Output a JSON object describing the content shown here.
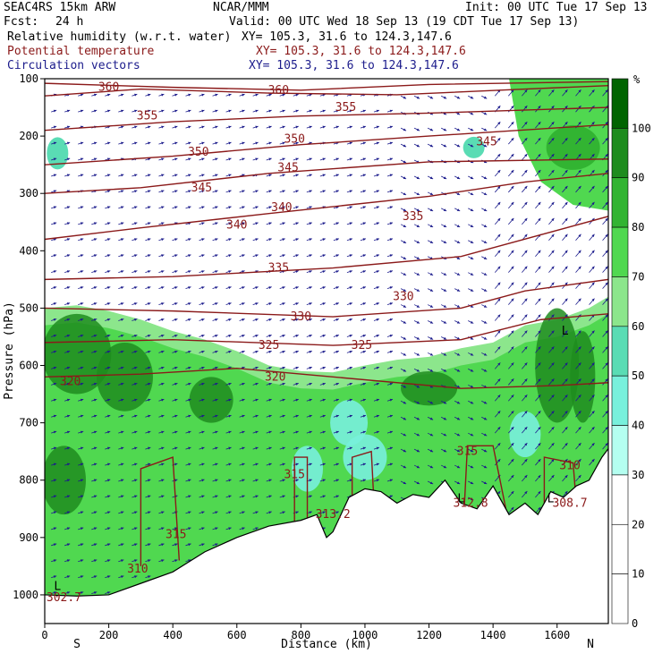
{
  "header": {
    "model": "SEAC4RS 15km ARW",
    "center": "NCAR/MMM",
    "init": "Init: 00 UTC Tue 17 Sep 13",
    "fcst_label": "Fcst:",
    "fcst_value": "24 h",
    "valid": "Valid: 00 UTC Wed 18 Sep 13 (19 CDT Tue 17 Sep 13)",
    "fields": [
      {
        "name": "Relative humidity (w.r.t. water)",
        "xy": "XY= 105.3, 31.6 to 124.3,147.6",
        "color": "#000000"
      },
      {
        "name": "Potential temperature",
        "xy": "XY= 105.3, 31.6 to 124.3,147.6",
        "color": "#8b1a1a"
      },
      {
        "name": "Circulation vectors",
        "xy": "XY= 105.3, 31.6 to 124.3,147.6",
        "color": "#1c1c8c"
      }
    ]
  },
  "chart_data": {
    "type": "heatmap",
    "description_fields": [
      "relative humidity (shaded, %)",
      "potential temperature (contours, K)",
      "circulation vectors"
    ],
    "xlabel": "Distance (km)",
    "ylabel": "Pressure (hPa)",
    "xlim": [
      0,
      1760
    ],
    "ylim": [
      1050,
      100
    ],
    "x_ticks": [
      "0",
      "200",
      "400",
      "600",
      "800",
      "1000",
      "1200",
      "1400",
      "1600"
    ],
    "y_ticks": [
      "100",
      "200",
      "300",
      "400",
      "500",
      "600",
      "700",
      "800",
      "900",
      "1000"
    ],
    "left_end_label": "S",
    "right_end_label": "N",
    "colorbar": {
      "unit": "%",
      "labels": [
        "100",
        "90",
        "80",
        "70",
        "60",
        "50",
        "40",
        "30",
        "20",
        "10",
        "0"
      ],
      "colors": [
        "#006400",
        "#1e8c1e",
        "#32b432",
        "#50d850",
        "#8ce68c",
        "#5adcb4",
        "#78f0dc",
        "#b4fff0",
        "#ffffff",
        "#ffffff",
        "#ffffff"
      ]
    },
    "theta_contour_labels": [
      {
        "text": "360",
        "x": 200,
        "p": 115
      },
      {
        "text": "360",
        "x": 730,
        "p": 120
      },
      {
        "text": "355",
        "x": 320,
        "p": 165
      },
      {
        "text": "355",
        "x": 940,
        "p": 150
      },
      {
        "text": "350",
        "x": 480,
        "p": 228
      },
      {
        "text": "350",
        "x": 780,
        "p": 205
      },
      {
        "text": "345",
        "x": 490,
        "p": 290
      },
      {
        "text": "345",
        "x": 760,
        "p": 255
      },
      {
        "text": "345",
        "x": 1380,
        "p": 210
      },
      {
        "text": "340",
        "x": 600,
        "p": 355
      },
      {
        "text": "340",
        "x": 740,
        "p": 325
      },
      {
        "text": "335",
        "x": 730,
        "p": 430
      },
      {
        "text": "335",
        "x": 1150,
        "p": 340
      },
      {
        "text": "330",
        "x": 800,
        "p": 515
      },
      {
        "text": "330",
        "x": 1120,
        "p": 480
      },
      {
        "text": "325",
        "x": 700,
        "p": 565
      },
      {
        "text": "325",
        "x": 990,
        "p": 565
      },
      {
        "text": "320",
        "x": 80,
        "p": 628
      },
      {
        "text": "320",
        "x": 720,
        "p": 620
      },
      {
        "text": "315",
        "x": 780,
        "p": 790
      },
      {
        "text": "315",
        "x": 1320,
        "p": 750
      },
      {
        "text": "315",
        "x": 410,
        "p": 895
      },
      {
        "text": "310",
        "x": 290,
        "p": 955
      },
      {
        "text": "310",
        "x": 1640,
        "p": 775
      },
      {
        "text": "313.2",
        "x": 900,
        "p": 860
      },
      {
        "text": "312.8",
        "x": 1330,
        "p": 840
      },
      {
        "text": "308.7",
        "x": 1640,
        "p": 840
      },
      {
        "text": "302.7",
        "x": 60,
        "p": 1005
      }
    ],
    "extrema_markers": [
      {
        "text": "L",
        "x": 40,
        "p": 985
      },
      {
        "text": "L",
        "x": 1300,
        "p": 832
      },
      {
        "text": "L",
        "x": 1580,
        "p": 832
      },
      {
        "text": "L",
        "x": 1625,
        "p": 540
      }
    ],
    "terrain_surface": [
      [
        0,
        1000
      ],
      [
        100,
        1002
      ],
      [
        200,
        1000
      ],
      [
        300,
        980
      ],
      [
        400,
        960
      ],
      [
        500,
        925
      ],
      [
        600,
        900
      ],
      [
        700,
        880
      ],
      [
        800,
        870
      ],
      [
        850,
        860
      ],
      [
        880,
        900
      ],
      [
        900,
        890
      ],
      [
        950,
        830
      ],
      [
        1000,
        815
      ],
      [
        1050,
        820
      ],
      [
        1100,
        840
      ],
      [
        1150,
        825
      ],
      [
        1200,
        830
      ],
      [
        1250,
        800
      ],
      [
        1300,
        840
      ],
      [
        1350,
        850
      ],
      [
        1400,
        810
      ],
      [
        1450,
        860
      ],
      [
        1500,
        840
      ],
      [
        1540,
        860
      ],
      [
        1580,
        820
      ],
      [
        1620,
        830
      ],
      [
        1660,
        810
      ],
      [
        1700,
        800
      ],
      [
        1740,
        760
      ],
      [
        1760,
        745
      ]
    ]
  }
}
